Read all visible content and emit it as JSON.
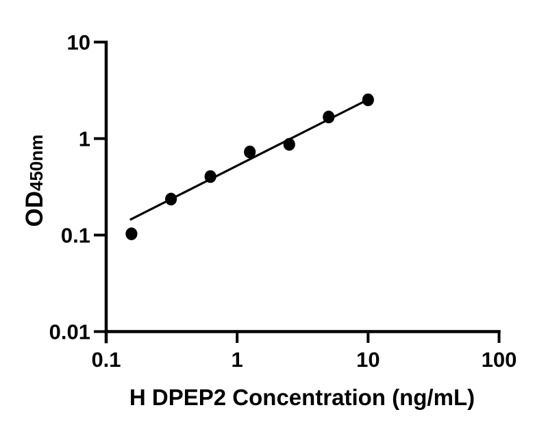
{
  "figure": {
    "background": "#ffffff",
    "ink_color": "#000000"
  },
  "chart_data": {
    "type": "scatter",
    "title": "",
    "xlabel": "H DPEP2 Concentration (ng/mL)",
    "ylabel": "OD450nm",
    "ylabel_main": "OD",
    "ylabel_sub": "450nm",
    "x_scale": "log",
    "y_scale": "log",
    "xlim": [
      0.1,
      100
    ],
    "ylim": [
      0.01,
      10
    ],
    "grid": false,
    "legend": null,
    "marker": "filled-circle",
    "x_ticks": [
      {
        "value": 0.1,
        "label": "0.1"
      },
      {
        "value": 1,
        "label": "1"
      },
      {
        "value": 10,
        "label": "10"
      },
      {
        "value": 100,
        "label": "100"
      }
    ],
    "y_ticks": [
      {
        "value": 10,
        "label": "10"
      },
      {
        "value": 1,
        "label": "1"
      },
      {
        "value": 0.1,
        "label": "0.1"
      },
      {
        "value": 0.01,
        "label": "0.01"
      }
    ],
    "points": [
      {
        "x": 0.156,
        "y": 0.103
      },
      {
        "x": 0.3125,
        "y": 0.236
      },
      {
        "x": 0.625,
        "y": 0.404
      },
      {
        "x": 1.25,
        "y": 0.727
      },
      {
        "x": 2.5,
        "y": 0.871
      },
      {
        "x": 5,
        "y": 1.675
      },
      {
        "x": 10,
        "y": 2.52
      }
    ],
    "fit_line": {
      "x1": 0.152,
      "y1": 0.144,
      "x2": 10,
      "y2": 2.54
    }
  }
}
